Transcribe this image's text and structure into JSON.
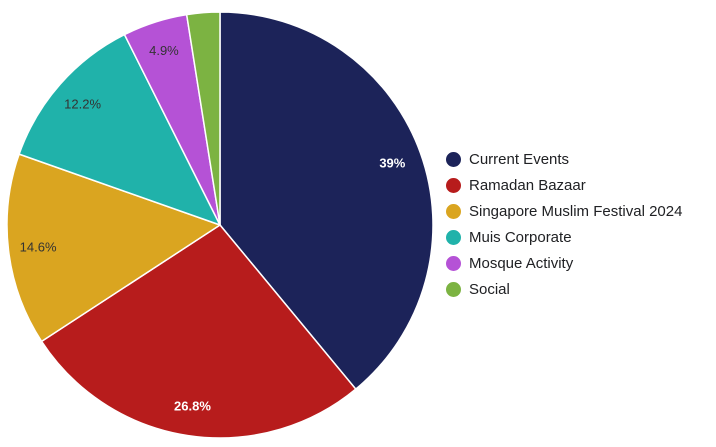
{
  "chart_data": {
    "type": "pie",
    "title": "",
    "legend_position": "right",
    "start": "top, clockwise",
    "slices": [
      {
        "name": "Current Events",
        "value": 39.0,
        "label": "39%",
        "color": "#1c2359",
        "label_color": "#ffffff",
        "label_bold": true
      },
      {
        "name": "Ramadan Bazaar",
        "value": 26.8,
        "label": "26.8%",
        "color": "#b71c1c",
        "label_color": "#ffffff",
        "label_bold": true
      },
      {
        "name": "Singapore Muslim Festival 2024",
        "value": 14.6,
        "label": "14.6%",
        "color": "#daa520",
        "label_color": "#333333",
        "label_bold": false
      },
      {
        "name": "Muis Corporate",
        "value": 12.2,
        "label": "12.2%",
        "color": "#20b2aa",
        "label_color": "#333333",
        "label_bold": false
      },
      {
        "name": "Mosque Activity",
        "value": 4.9,
        "label": "4.9%",
        "color": "#b552d6",
        "label_color": "#333333",
        "label_bold": false
      },
      {
        "name": "Social",
        "value": 2.5,
        "label": "",
        "color": "#7cb342",
        "label_color": "#333333",
        "label_bold": false
      }
    ]
  }
}
